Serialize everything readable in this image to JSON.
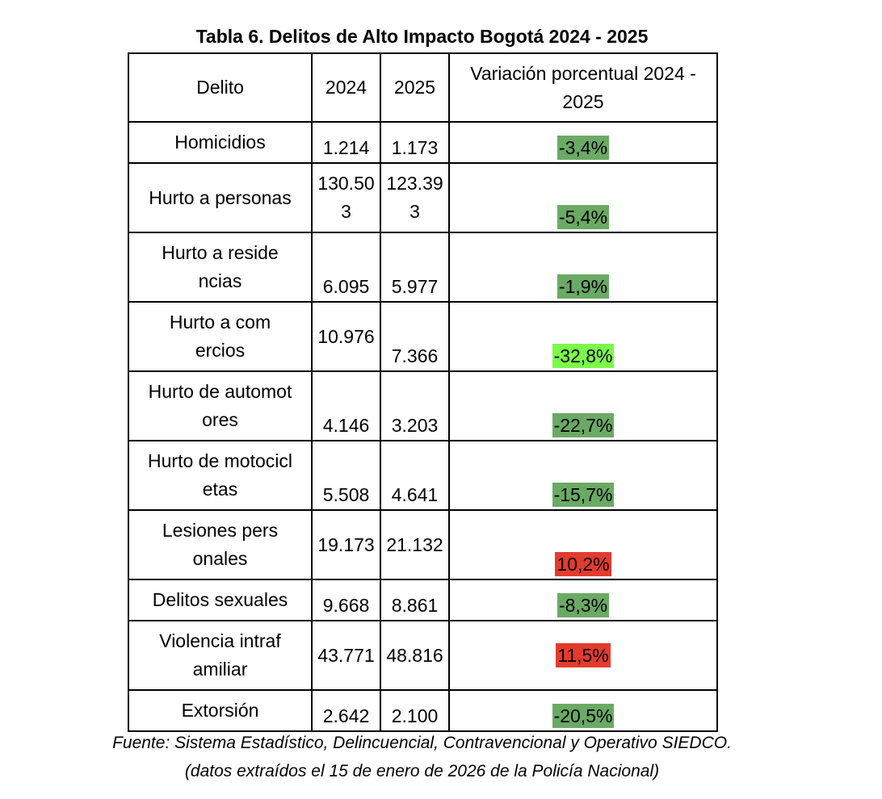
{
  "title": "Tabla 6. Delitos de Alto Impacto Bogotá 2024 - 2025",
  "headers": {
    "delito": "Delito",
    "y2024": "2024",
    "y2025": "2025",
    "variation": "Variación porcentual 2024 - 2025"
  },
  "rows": [
    {
      "delito": "Homicidios",
      "v2024": "1.214",
      "v2025": "1.173",
      "variation": "-3,4%",
      "color": "#6aaa64"
    },
    {
      "delito": "Hurto a personas",
      "v2024": "130.503",
      "v2025": "123.393",
      "variation": "-5,4%",
      "color": "#6aaa64"
    },
    {
      "delito": "Hurto a residencias",
      "v2024": "6.095",
      "v2025": "5.977",
      "variation": "-1,9%",
      "color": "#6aaa64"
    },
    {
      "delito": "Hurto a comercios",
      "v2024": "10.976",
      "v2025": "7.366",
      "variation": "-32,8%",
      "color": "#7bfa4a"
    },
    {
      "delito": "Hurto de automotores",
      "v2024": "4.146",
      "v2025": "3.203",
      "variation": "-22,7%",
      "color": "#6aaa64"
    },
    {
      "delito": "Hurto de motocicletas",
      "v2024": "5.508",
      "v2025": "4.641",
      "variation": "-15,7%",
      "color": "#6aaa64"
    },
    {
      "delito": "Lesiones personales",
      "v2024": "19.173",
      "v2025": "21.132",
      "variation": "10,2%",
      "color": "#e33b2e"
    },
    {
      "delito": "Delitos sexuales",
      "v2024": "9.668",
      "v2025": "8.861",
      "variation": "-8,3%",
      "color": "#6aaa64"
    },
    {
      "delito": "Violencia intrafamiliar",
      "v2024": "43.771",
      "v2025": "48.816",
      "variation": "11,5%",
      "color": "#e33b2e"
    },
    {
      "delito": "Extorsión",
      "v2024": "2.642",
      "v2025": "2.100",
      "variation": "-20,5%",
      "color": "#6aaa64"
    }
  ],
  "footer": {
    "line1": "Fuente: Sistema Estadístico, Delincuencial, Contravencional y Operativo SIEDCO.",
    "line2": "(datos extraídos el 15 de enero de 2026 de la Policía Nacional)"
  }
}
